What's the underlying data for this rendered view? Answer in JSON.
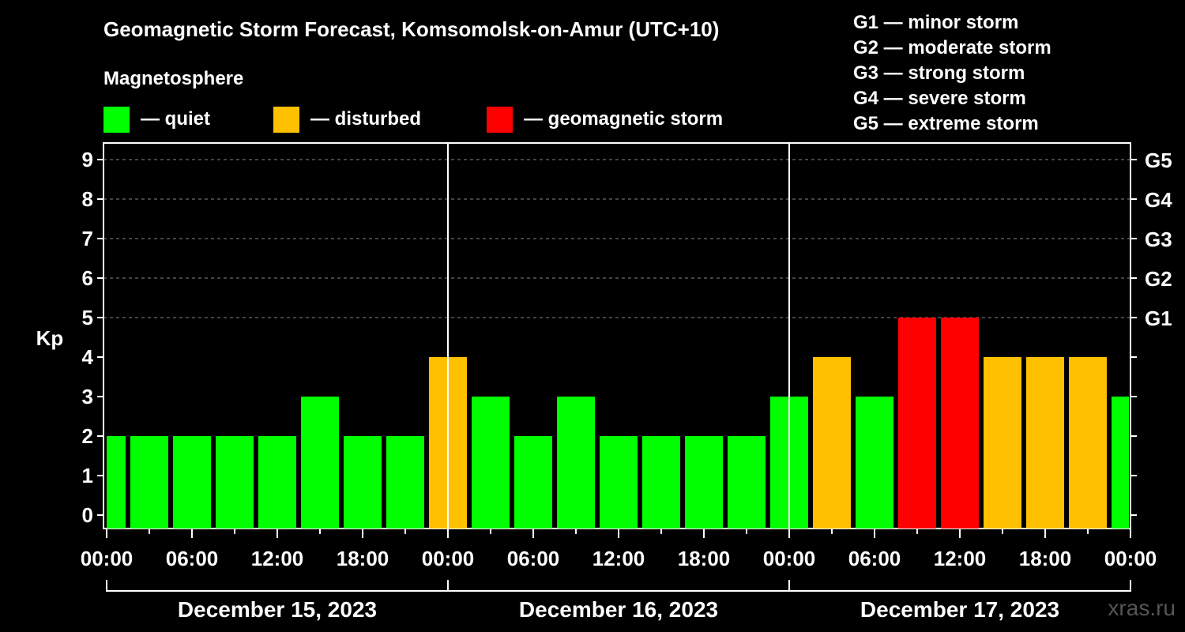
{
  "chart_data": {
    "type": "bar",
    "title": "Geomagnetic Storm Forecast, Komsomolsk-on-Amur (UTC+10)",
    "ylabel": "Kp",
    "ylim": [
      0,
      9
    ],
    "y_ticks": [
      "0",
      "1",
      "2",
      "3",
      "4",
      "5",
      "6",
      "7",
      "8",
      "9"
    ],
    "g_ticks": [
      {
        "kp": 5,
        "label": "G1"
      },
      {
        "kp": 6,
        "label": "G2"
      },
      {
        "kp": 7,
        "label": "G3"
      },
      {
        "kp": 8,
        "label": "G4"
      },
      {
        "kp": 9,
        "label": "G5"
      }
    ],
    "x_tick_labels": [
      "00:00",
      "06:00",
      "12:00",
      "18:00",
      "00:00",
      "06:00",
      "12:00",
      "18:00",
      "00:00",
      "06:00",
      "12:00",
      "18:00",
      "00:00"
    ],
    "days": [
      "December 15, 2023",
      "December 16, 2023",
      "December 17, 2023"
    ],
    "bar_hours": [
      0,
      3,
      6,
      9,
      12,
      15,
      18,
      21,
      24,
      27,
      30,
      33,
      36,
      39,
      42,
      45,
      48,
      51,
      54,
      57,
      60,
      63,
      66,
      69,
      72
    ],
    "values": [
      2,
      2,
      2,
      2,
      2,
      3,
      2,
      2,
      4,
      3,
      2,
      3,
      2,
      2,
      2,
      2,
      3,
      4,
      3,
      5,
      5,
      4,
      4,
      4,
      3
    ],
    "status": [
      "quiet",
      "quiet",
      "quiet",
      "quiet",
      "quiet",
      "quiet",
      "quiet",
      "quiet",
      "disturbed",
      "quiet",
      "quiet",
      "quiet",
      "quiet",
      "quiet",
      "quiet",
      "quiet",
      "quiet",
      "disturbed",
      "quiet",
      "storm",
      "storm",
      "disturbed",
      "disturbed",
      "disturbed",
      "quiet"
    ],
    "colors": {
      "quiet": "#00ff00",
      "disturbed": "#ffc000",
      "storm": "#ff0000"
    }
  },
  "legend": {
    "heading": "Magnetosphere",
    "items": [
      {
        "label": "— quiet",
        "color": "#00ff00"
      },
      {
        "label": "— disturbed",
        "color": "#ffc000"
      },
      {
        "label": "— geomagnetic storm",
        "color": "#ff0000"
      }
    ]
  },
  "g_scale": [
    "G1 — minor storm",
    "G2 — moderate storm",
    "G3 — strong storm",
    "G4 — severe storm",
    "G5 — extreme storm"
  ],
  "watermark": "xras.ru"
}
